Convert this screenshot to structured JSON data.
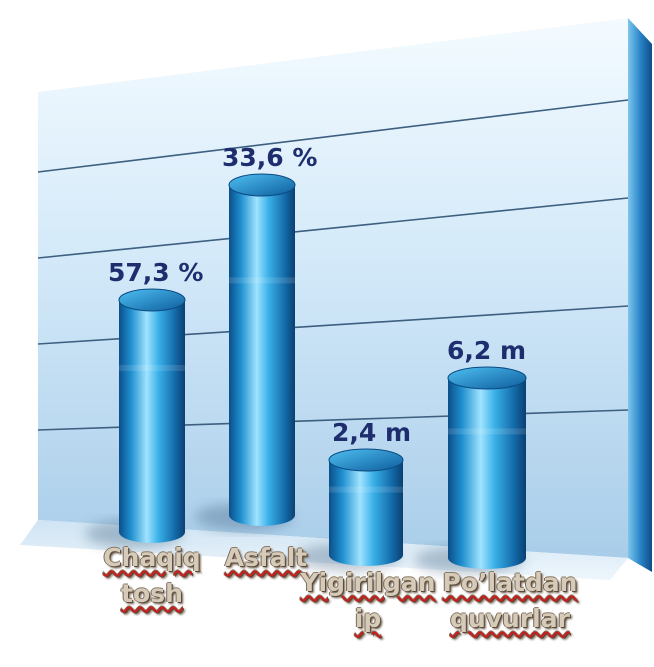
{
  "chart_data": {
    "type": "bar",
    "style": "3d-cylinder",
    "categories": [
      "Chaqiq\ntosh",
      "Asfalt",
      "Yigirilgan\nip",
      "Po’latdan\nquvurlar"
    ],
    "data_labels": [
      "57,3 %",
      "33,6 %",
      "2,4 m",
      "6,2 m"
    ],
    "grid": true,
    "legend": "none",
    "colors": {
      "bar": "#1f8fcf",
      "bar_dark": "#0b4f8a",
      "bar_light": "#9fe3ff",
      "wall": "#cfe6f8",
      "text": "#1e2d6e",
      "underline": "#cc1d1d"
    }
  }
}
